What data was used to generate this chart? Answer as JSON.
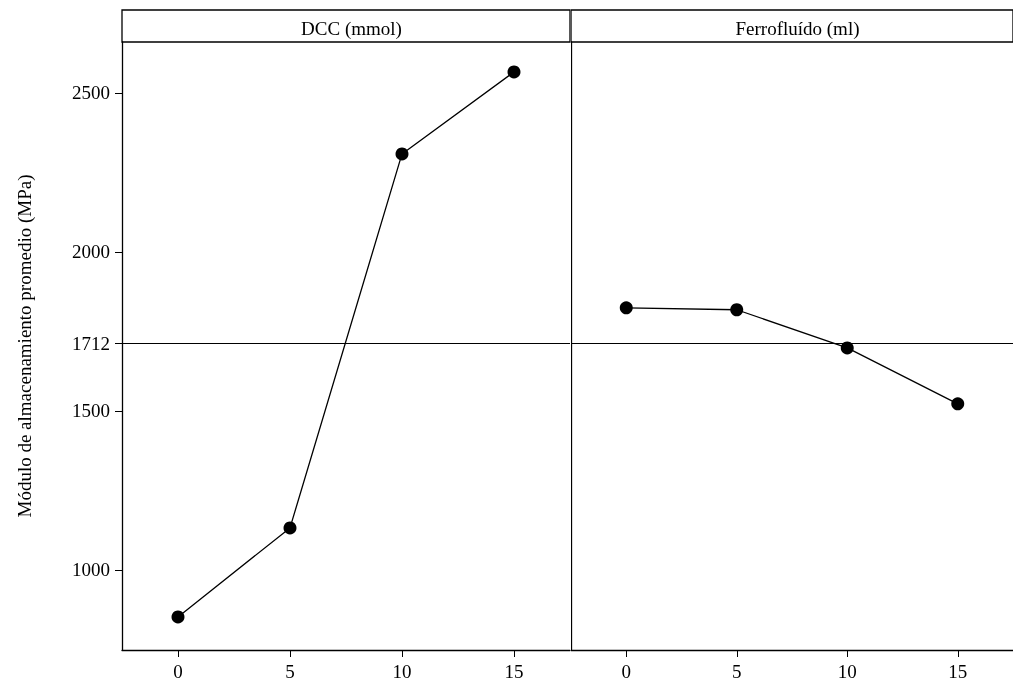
{
  "chart_data": [
    {
      "type": "line",
      "title": "DCC (mmol)",
      "ylabel": "Módulo de almacenamiento promedio (MPa)",
      "x": [
        0,
        5,
        10,
        15
      ],
      "xlim": [
        -2.5,
        17.5
      ],
      "xticks": [
        0,
        5,
        10,
        15
      ],
      "ylim": [
        748,
        2660
      ],
      "yticks": [
        1000,
        1500,
        1712,
        2000,
        2500
      ],
      "marker": "circle",
      "series": [
        {
          "color": "#000000",
          "values": [
            852,
            1132,
            2308,
            2566
          ]
        }
      ],
      "ref_lines": [
        {
          "axis": "y",
          "value": 1712,
          "color": "#000000"
        }
      ]
    },
    {
      "type": "line",
      "title": "Ferrofluído (ml)",
      "x": [
        0,
        5,
        10,
        15
      ],
      "xlim": [
        -2.5,
        17.5
      ],
      "xticks": [
        0,
        5,
        10,
        15
      ],
      "ylim": [
        748,
        2660
      ],
      "tick_labels": "x",
      "marker": "circle",
      "series": [
        {
          "color": "#000000",
          "values": [
            1824,
            1818,
            1698,
            1522
          ]
        }
      ],
      "ref_lines": [
        {
          "axis": "y",
          "value": 1712,
          "color": "#000000"
        }
      ]
    }
  ]
}
